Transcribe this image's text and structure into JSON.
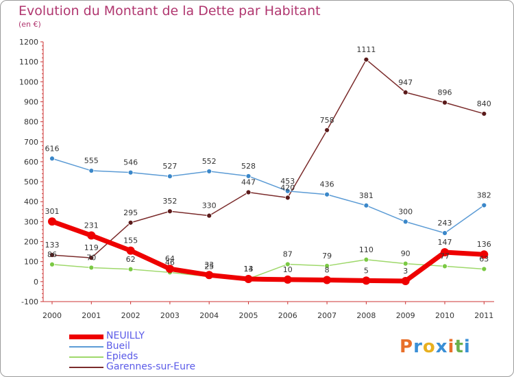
{
  "header": {
    "title": "Evolution du Montant de la Dette par Habitant",
    "subtitle": "(en €)"
  },
  "logo": {
    "text": "Proxiti",
    "colors": [
      "#e8702a",
      "#3a8fd6",
      "#e8b020",
      "#3a8fd6",
      "#e8702a",
      "#6ab04c",
      "#3a8fd6"
    ]
  },
  "chart_data": {
    "type": "line",
    "title": "Evolution du Montant de la Dette par Habitant",
    "subtitle": "(en €)",
    "xlabel": "",
    "ylabel": "",
    "categories": [
      "2000",
      "2001",
      "2002",
      "2003",
      "2004",
      "2005",
      "2006",
      "2007",
      "2008",
      "2009",
      "2010",
      "2011"
    ],
    "ylim": [
      -100,
      1200
    ],
    "yticks": [
      -100,
      0,
      100,
      200,
      300,
      400,
      500,
      600,
      700,
      800,
      900,
      1000,
      1100,
      1200
    ],
    "grid": false,
    "legend_position": "bottom-left",
    "series": [
      {
        "name": "NEUILLY",
        "color": "#ee0000",
        "emphasis": true,
        "values": [
          301,
          231,
          155,
          64,
          33,
          13,
          10,
          8,
          5,
          3,
          147,
          136
        ],
        "labels": [
          "301",
          "231",
          "155",
          "64",
          "33",
          "13",
          "10",
          "8",
          "5",
          "3",
          "147",
          "136"
        ]
      },
      {
        "name": "Bueil",
        "color": "#5b9bd5",
        "marker": "#3a87c9",
        "values": [
          616,
          555,
          546,
          527,
          552,
          528,
          453,
          436,
          381,
          300,
          243,
          382
        ],
        "labels": [
          "616",
          "555",
          "546",
          "527",
          "552",
          "528",
          "453",
          "436",
          "381",
          "300",
          "243",
          "382"
        ]
      },
      {
        "name": "Epieds",
        "color": "#9ed86a",
        "marker": "#7ac943",
        "values": [
          86,
          70,
          62,
          46,
          25,
          14,
          87,
          79,
          110,
          90,
          77,
          63
        ],
        "labels": [
          "86",
          "70",
          "62",
          "46",
          "25",
          "14",
          "87",
          "79",
          "110",
          "90",
          "77",
          "63"
        ]
      },
      {
        "name": "Garennes-sur-Eure",
        "color": "#7a2a2a",
        "marker": "#5a1a1a",
        "values": [
          133,
          119,
          295,
          352,
          330,
          447,
          420,
          758,
          1111,
          947,
          896,
          840
        ],
        "labels": [
          "133",
          "119",
          "295",
          "352",
          "330",
          "447",
          "420",
          "758",
          "1111",
          "947",
          "896",
          "840"
        ]
      }
    ]
  }
}
